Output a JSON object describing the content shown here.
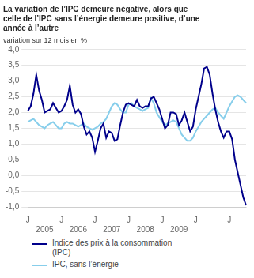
{
  "chart_data": {
    "type": "line",
    "title": "La variation de l’IPC demeure négative, alors que\ncelle de l’IPC sans l’énergie demeure positive, d’une\nannée à l’autre",
    "subtitle": "variation sur 12 mois en %",
    "categories": [
      "J",
      null,
      null,
      null,
      null,
      null,
      null,
      null,
      null,
      null,
      null,
      null,
      "J",
      null,
      null,
      null,
      null,
      null,
      null,
      null,
      null,
      null,
      null,
      null,
      "J",
      null,
      null,
      null,
      null,
      null,
      null,
      null,
      null,
      null,
      null,
      null,
      "J",
      null,
      null,
      null,
      null,
      null,
      null,
      null,
      null,
      null,
      null,
      null,
      "J",
      null,
      null,
      null,
      null,
      null,
      null,
      null,
      null,
      null,
      null,
      null,
      "J",
      null,
      null,
      null,
      null,
      null,
      null,
      null,
      null,
      null,
      null,
      null,
      "J",
      null,
      null,
      null,
      null,
      null,
      null
    ],
    "annotations": [
      {
        "x": 6,
        "text": "2005"
      },
      {
        "x": 18,
        "text": "2006"
      },
      {
        "x": 30,
        "text": "2007"
      },
      {
        "x": 42,
        "text": "2008"
      },
      {
        "x": 54,
        "text": "2009"
      }
    ],
    "series": [
      {
        "name": "Indice des prix à la consommation\n(IPC)",
        "color": "#00008B",
        "values": [
          2.05,
          2.2,
          2.6,
          3.2,
          2.7,
          2.4,
          2.0,
          2.05,
          2.1,
          2.3,
          2.15,
          2.0,
          2.05,
          2.2,
          2.4,
          2.85,
          2.25,
          2.0,
          2.1,
          1.95,
          1.55,
          1.3,
          1.4,
          1.2,
          0.75,
          1.1,
          1.5,
          1.65,
          1.2,
          1.4,
          1.35,
          1.1,
          1.15,
          1.6,
          2.0,
          2.25,
          2.3,
          2.25,
          2.2,
          2.4,
          2.2,
          2.15,
          2.2,
          2.2,
          2.45,
          2.5,
          2.3,
          2.1,
          1.8,
          1.5,
          1.6,
          2.0,
          2.0,
          1.95,
          1.6,
          1.75,
          2.0,
          1.7,
          1.4,
          1.55,
          2.1,
          2.5,
          2.9,
          3.4,
          3.45,
          3.2,
          2.6,
          2.1,
          1.7,
          1.4,
          1.2,
          1.4,
          1.4,
          1.15,
          0.5,
          0.1,
          -0.3,
          -0.7,
          -0.95
        ]
      },
      {
        "name": "IPC, sans l’énergie",
        "color": "#87CEEB",
        "values": [
          1.7,
          1.75,
          1.8,
          1.7,
          1.6,
          1.55,
          1.5,
          1.6,
          1.65,
          1.7,
          1.6,
          1.5,
          1.5,
          1.65,
          1.7,
          1.65,
          1.65,
          1.6,
          1.55,
          1.6,
          1.65,
          1.55,
          1.5,
          1.45,
          1.5,
          1.55,
          1.65,
          1.7,
          1.8,
          2.0,
          2.2,
          2.3,
          2.25,
          2.1,
          2.0,
          2.0,
          2.25,
          2.3,
          2.2,
          2.15,
          2.1,
          2.05,
          2.1,
          2.15,
          2.45,
          2.3,
          2.0,
          1.85,
          1.7,
          1.6,
          1.65,
          1.7,
          1.75,
          1.7,
          1.5,
          1.3,
          1.2,
          1.1,
          1.1,
          1.2,
          1.4,
          1.55,
          1.7,
          1.8,
          1.9,
          2.0,
          2.1,
          2.15,
          2.0,
          1.9,
          1.8,
          2.0,
          2.2,
          2.35,
          2.5,
          2.55,
          2.5,
          2.4,
          2.3
        ]
      }
    ],
    "ylim": [
      -1.0,
      4.0
    ],
    "yticks": [
      {
        "value": -1.0,
        "label": "-1,0"
      },
      {
        "value": -0.5,
        "label": "-0,5"
      },
      {
        "value": 0.0,
        "label": "0,0"
      },
      {
        "value": 0.5,
        "label": "0,5"
      },
      {
        "value": 1.0,
        "label": "1,0"
      },
      {
        "value": 1.5,
        "label": "1,5"
      },
      {
        "value": 2.0,
        "label": "2,0"
      },
      {
        "value": 2.5,
        "label": "2,5"
      },
      {
        "value": 3.0,
        "label": "3,0"
      },
      {
        "value": 3.5,
        "label": "3,5"
      },
      {
        "value": 4.0,
        "label": "4,0"
      }
    ],
    "grid": "y",
    "legend": "bottom"
  }
}
